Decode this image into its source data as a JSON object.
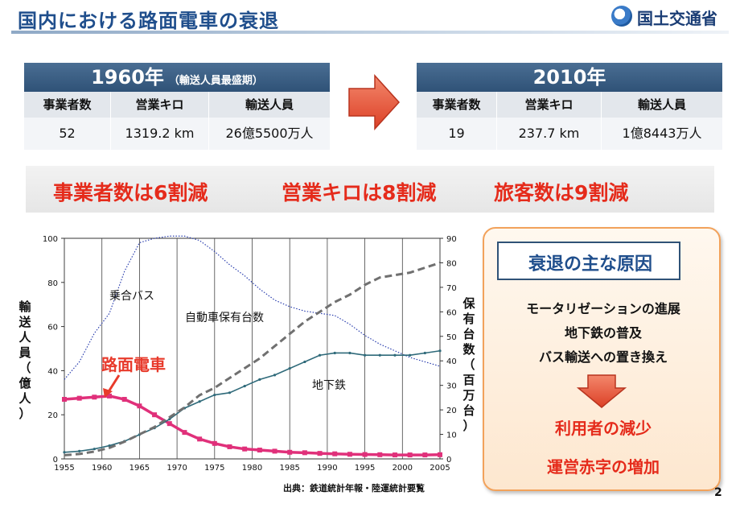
{
  "header": {
    "title": "国内における路面電車の衰退",
    "logo_text": "国土交通省"
  },
  "table_1960": {
    "year": "1960年",
    "subtitle": "（輸送人員最盛期）",
    "columns": [
      "事業者数",
      "営業キロ",
      "輸送人員"
    ],
    "values": [
      "52",
      "1319.2 km",
      "26億5500万人"
    ]
  },
  "table_2010": {
    "year": "2010年",
    "columns": [
      "事業者数",
      "営業キロ",
      "輸送人員"
    ],
    "values": [
      "19",
      "237.7 km",
      "1億8443万人"
    ]
  },
  "reduction": {
    "item1": "事業者数は6割減",
    "item2": "営業キロは8割減",
    "item3": "旅客数は9割減"
  },
  "chart_data": {
    "type": "line",
    "x": [
      1955,
      1957,
      1959,
      1961,
      1963,
      1965,
      1967,
      1969,
      1971,
      1973,
      1975,
      1977,
      1979,
      1981,
      1983,
      1985,
      1987,
      1989,
      1991,
      1993,
      1995,
      1997,
      1999,
      2001,
      2003,
      2005
    ],
    "xticks": [
      1955,
      1960,
      1965,
      1970,
      1975,
      1980,
      1985,
      1990,
      1995,
      2000,
      2005
    ],
    "xlim": [
      1955,
      2005
    ],
    "ylim_left": [
      0,
      100
    ],
    "yticks_left": [
      0,
      20,
      40,
      60,
      80,
      100
    ],
    "ylim_right": [
      0,
      90
    ],
    "yticks_right": [
      0,
      10,
      20,
      30,
      40,
      50,
      60,
      70,
      80,
      90
    ],
    "ylabel_left": "輸送人員（億人）",
    "ylabel_right": "保有台数（百万台）",
    "grid": "vertical",
    "series": [
      {
        "name": "乗合バス",
        "axis": "left",
        "style": "dotted",
        "color": "#2b3fae",
        "values": [
          36,
          44,
          57,
          66,
          85,
          98,
          100,
          101,
          101,
          99,
          94,
          88,
          83,
          77,
          72,
          69,
          67,
          66,
          65,
          61,
          56,
          52,
          49,
          46,
          44,
          42
        ]
      },
      {
        "name": "路面電車",
        "axis": "left",
        "style": "marked",
        "color": "#e0307a",
        "values": [
          27,
          27.5,
          28,
          28.5,
          27,
          24,
          20,
          16,
          12,
          9,
          7,
          5.5,
          4.5,
          4,
          3.5,
          3,
          2.8,
          2.5,
          2.3,
          2.1,
          2,
          1.9,
          1.8,
          1.8,
          1.8,
          1.9
        ]
      },
      {
        "name": "地下鉄",
        "axis": "left",
        "style": "solid",
        "color": "#2f6a7a",
        "values": [
          3,
          3.5,
          4.5,
          6,
          8,
          11,
          14,
          18,
          23,
          26,
          29,
          30,
          33,
          36,
          38,
          41,
          44,
          47,
          48,
          48,
          47,
          47,
          47,
          47,
          48,
          49
        ]
      },
      {
        "name": "自動車保有台数",
        "axis": "right",
        "style": "dashed",
        "color": "#707070",
        "values": [
          1.5,
          2,
          3,
          4.5,
          7,
          10,
          13,
          17,
          21,
          26,
          29,
          33,
          37,
          41,
          46,
          51,
          56,
          60,
          64,
          67,
          71,
          74,
          75,
          76,
          78,
          80
        ]
      }
    ],
    "annotations": [
      "乗合バス",
      "自動車保有台数",
      "路面電車",
      "地下鉄"
    ]
  },
  "source": "出典：鉄道統計年報・陸運統計要覧",
  "causes": {
    "title": "衰退の主な原因",
    "items": [
      "モータリゼーションの進展",
      "地下鉄の普及",
      "バス輸送への置き換え"
    ],
    "results": [
      "利用者の減少",
      "運営赤字の増加"
    ]
  },
  "page_number": "2",
  "colors": {
    "title": "#1f4e8c",
    "table_header": "#2f5277",
    "accent_red": "#e52b1b",
    "arrow": "#e8563a"
  }
}
